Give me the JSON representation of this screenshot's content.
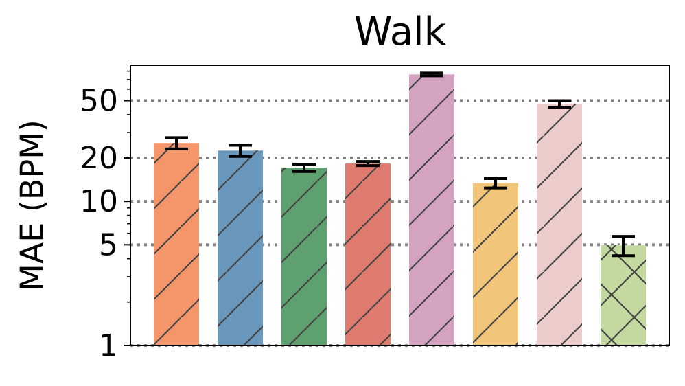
{
  "chart_data": {
    "type": "bar",
    "title": "Walk",
    "y_label": "MAE (BPM)",
    "values": [
      25.4,
      22.5,
      17.1,
      18.3,
      76.0,
      13.4,
      47.5,
      4.96
    ],
    "errors": [
      2.3,
      2.0,
      1.0,
      0.6,
      1.7,
      1.0,
      2.5,
      0.76
    ],
    "colors": [
      "#f4956a",
      "#6a98bc",
      "#5fa070",
      "#de7b6e",
      "#d3a3c1",
      "#f1c57a",
      "#ecccca",
      "#c3d9a0"
    ],
    "hatches": [
      "/",
      "/",
      "/",
      "/",
      "/",
      "/",
      "/",
      "x"
    ],
    "ylim": [
      1,
      88
    ],
    "yscale": "log",
    "yticks": [
      1,
      5,
      10,
      20,
      50
    ],
    "minor_yticks": [
      2,
      3,
      4,
      6,
      7,
      8,
      9,
      30,
      40,
      60,
      70,
      80
    ],
    "grid": true
  }
}
